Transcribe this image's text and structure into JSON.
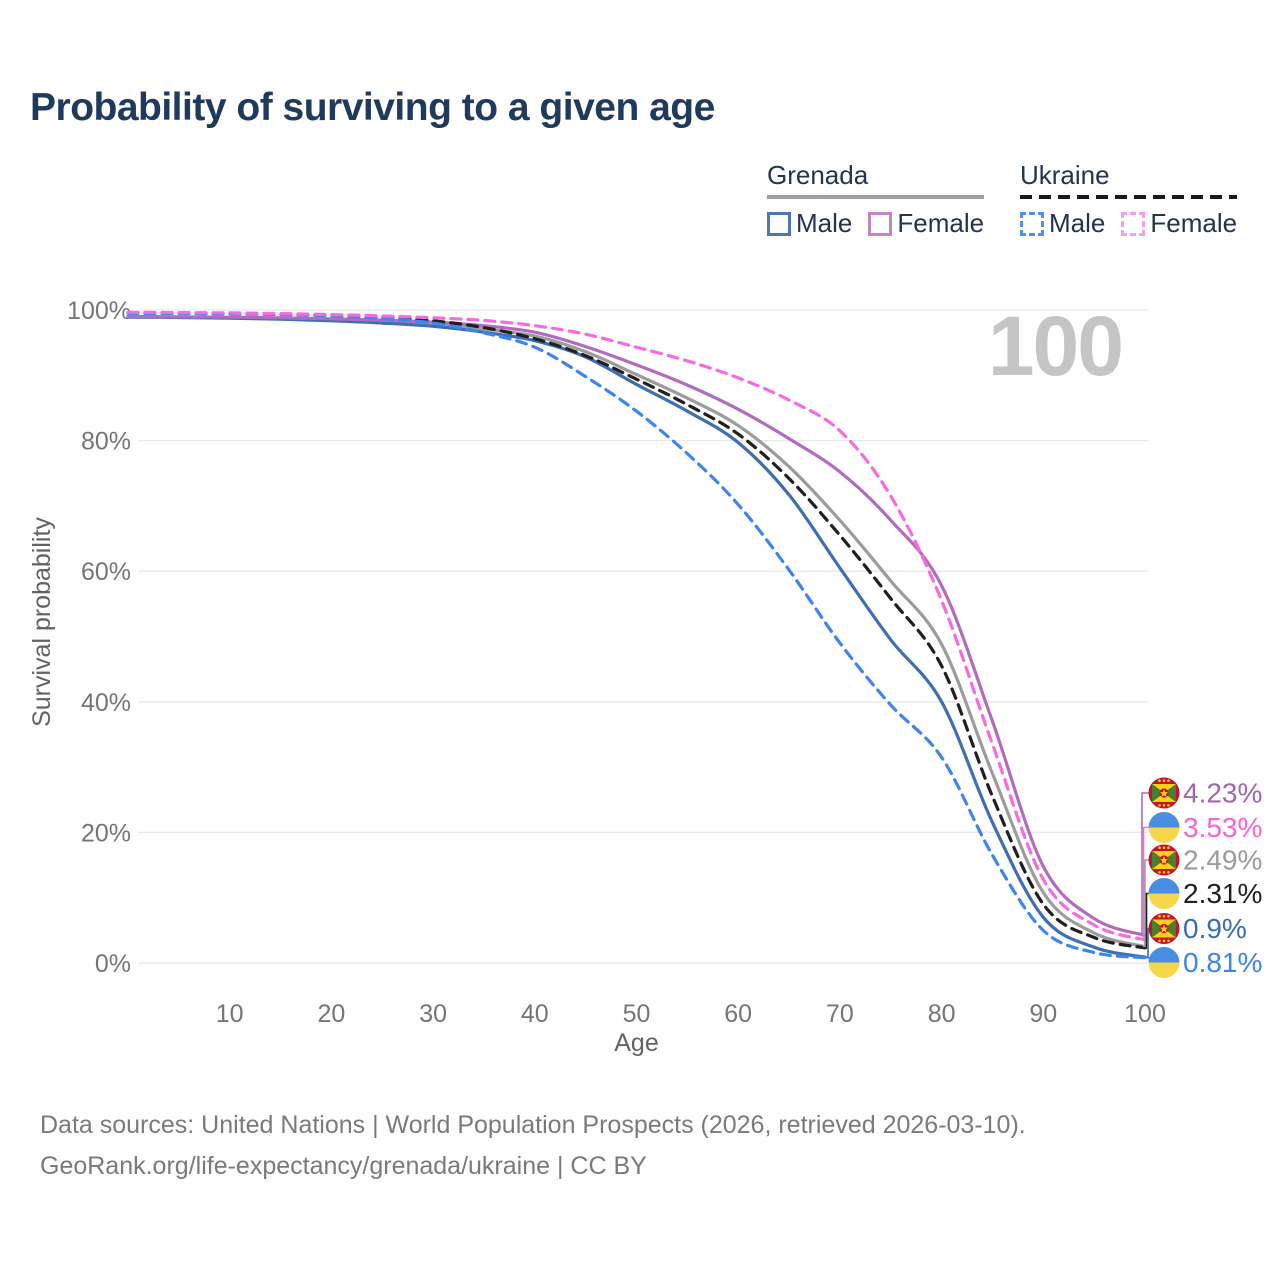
{
  "title": "Probability of surviving to a given age",
  "watermark": "100",
  "legend": {
    "groups": [
      {
        "label": "Grenada",
        "line_style": "solid",
        "line_color": "#a0a0a0",
        "items": [
          {
            "label": "Male",
            "color": "#4e79ae",
            "style": "solid"
          },
          {
            "label": "Female",
            "color": "#c286c4",
            "style": "solid"
          }
        ]
      },
      {
        "label": "Ukraine",
        "line_style": "dashed",
        "line_color": "#1a1a1a",
        "items": [
          {
            "label": "Male",
            "color": "#4e90f5",
            "style": "dashed"
          },
          {
            "label": "Female",
            "color": "#fb9be9",
            "style": "dashed"
          }
        ]
      }
    ]
  },
  "chart_data": {
    "type": "line",
    "title": "Probability of surviving to a given age",
    "xlabel": "Age",
    "ylabel": "Survival probability",
    "xlim": [
      0,
      100
    ],
    "ylim": [
      0,
      100
    ],
    "grid": true,
    "x_ticks": [
      10,
      20,
      30,
      40,
      50,
      60,
      70,
      80,
      90,
      100
    ],
    "y_ticks": [
      "0%",
      "20%",
      "40%",
      "60%",
      "80%",
      "100%"
    ],
    "y_tick_values": [
      0,
      20,
      40,
      60,
      80,
      100
    ],
    "age_counter_watermark": "100",
    "x": [
      0,
      5,
      10,
      15,
      20,
      25,
      30,
      35,
      40,
      45,
      50,
      55,
      60,
      65,
      70,
      75,
      80,
      85,
      90,
      95,
      100
    ],
    "series": [
      {
        "id": "grenada-total",
        "name": "Grenada (both sexes)",
        "country": "Grenada",
        "color": "#9c9c9c",
        "dash": "solid",
        "end_label": "2.49%",
        "end_label_color": "#9b9b9b",
        "flag": "grenada",
        "values": [
          98.95,
          98.9,
          98.8,
          98.7,
          98.5,
          98.25,
          97.85,
          97.1,
          96.0,
          93.6,
          90.1,
          86.5,
          82.3,
          76.0,
          67.8,
          58.5,
          48.8,
          29.0,
          10.8,
          4.6,
          2.49
        ]
      },
      {
        "id": "grenada-male",
        "name": "Grenada Male",
        "country": "Grenada",
        "color": "#3e6eb4",
        "dash": "solid",
        "end_label": "0.9%",
        "end_label_color": "#3a6cb3",
        "flag": "grenada",
        "values": [
          98.9,
          98.85,
          98.75,
          98.6,
          98.35,
          98.0,
          97.5,
          96.6,
          95.3,
          92.8,
          88.6,
          84.5,
          79.7,
          71.7,
          60.5,
          49.5,
          40.0,
          21.5,
          7.0,
          2.4,
          0.9
        ]
      },
      {
        "id": "grenada-female",
        "name": "Grenada Female",
        "country": "Grenada",
        "color": "#b06cbf",
        "dash": "solid",
        "end_label": "4.23%",
        "end_label_color": "#a266ae",
        "flag": "grenada",
        "values": [
          99.0,
          98.95,
          98.9,
          98.8,
          98.65,
          98.45,
          98.15,
          97.6,
          96.6,
          94.4,
          91.6,
          88.5,
          84.8,
          80.3,
          75.2,
          67.8,
          57.8,
          37.0,
          14.8,
          6.8,
          4.23
        ]
      },
      {
        "id": "ukraine-total",
        "name": "Ukraine (both sexes)",
        "country": "Ukraine",
        "color": "#1f1f1f",
        "dash": "dashed",
        "end_label": "2.31%",
        "end_label_color": "#202020",
        "flag": "ukraine",
        "values": [
          99.55,
          99.5,
          99.45,
          99.35,
          99.15,
          98.85,
          98.35,
          97.3,
          95.6,
          93.0,
          89.4,
          85.5,
          81.0,
          74.2,
          65.5,
          55.8,
          45.5,
          25.5,
          9.0,
          3.9,
          2.31
        ]
      },
      {
        "id": "ukraine-male",
        "name": "Ukraine Male",
        "country": "Ukraine",
        "color": "#3d86ee",
        "dash": "dashed",
        "end_label": "0.81%",
        "end_label_color": "#3e84ec",
        "flag": "ukraine",
        "values": [
          99.5,
          99.45,
          99.4,
          99.3,
          99.1,
          98.7,
          98.0,
          96.5,
          94.3,
          89.8,
          84.5,
          78.0,
          70.2,
          60.2,
          49.0,
          39.5,
          31.5,
          16.5,
          5.0,
          1.6,
          0.81
        ]
      },
      {
        "id": "ukraine-female",
        "name": "Ukraine Female",
        "country": "Ukraine",
        "color": "#f96ae1",
        "dash": "dashed",
        "end_label": "3.53%",
        "end_label_color": "#f763dd",
        "flag": "ukraine",
        "values": [
          99.65,
          99.6,
          99.55,
          99.45,
          99.3,
          99.1,
          98.8,
          98.4,
          97.6,
          96.3,
          94.3,
          92.2,
          89.6,
          86.2,
          81.5,
          71.5,
          55.5,
          33.5,
          12.8,
          5.8,
          3.53
        ]
      }
    ],
    "end_labels_top_to_bottom": [
      "4.23%",
      "3.53%",
      "2.49%",
      "2.31%",
      "0.9%",
      "0.81%"
    ],
    "legend_position": "top-right"
  },
  "footer": {
    "line1": "Data sources: United Nations | World Population Prospects (2026, retrieved 2026-03-10).",
    "line2": "GeoRank.org/life-expectancy/grenada/ukraine | CC BY"
  }
}
